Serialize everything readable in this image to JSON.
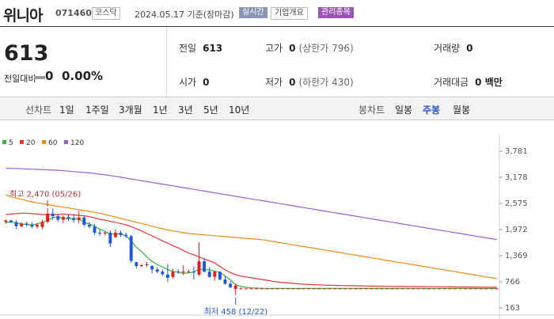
{
  "header": {
    "name": "위니아",
    "code": "071460",
    "market": "코스닥",
    "date": "2024.05.17 기준(장마감)",
    "realtime": "실시간",
    "company_info": "기업개요",
    "managed": "관리종목"
  },
  "summary": {
    "price": "613",
    "change_label": "전일대비",
    "change": "0",
    "rate": "0.00%",
    "prev_label": "전일",
    "prev": "613",
    "high_label": "고가",
    "high": "0",
    "high_limit": "(상한가 796)",
    "vol_label": "거래량",
    "vol": "0",
    "open_label": "시가",
    "open": "0",
    "low_label": "저가",
    "low": "0",
    "low_limit": "(하한가 430)",
    "amt_label": "거래대금",
    "amt": "0 백만"
  },
  "tabs": {
    "line": "선차트",
    "d1": "1일",
    "w1": "1주일",
    "m3": "3개월",
    "y1": "1년",
    "y3": "3년",
    "y5": "5년",
    "y10": "10년",
    "candle": "봉차트",
    "day": "일봉",
    "week": "주봉",
    "month": "월봉",
    "active": "주봉"
  },
  "chart_data": {
    "type": "line",
    "legend": [
      {
        "name": "5",
        "color": "#3bb33b"
      },
      {
        "name": "20",
        "color": "#e83535"
      },
      {
        "name": "60",
        "color": "#ef8a17"
      },
      {
        "name": "120",
        "color": "#9b5fd0"
      }
    ],
    "y_ticks": [
      3781,
      3178,
      2575,
      1972,
      1369,
      766,
      163
    ],
    "ylim": [
      163,
      3781
    ],
    "candles": [
      [
        2150,
        2210,
        2110,
        2180
      ],
      [
        2180,
        2200,
        2120,
        2140
      ],
      [
        2140,
        2190,
        1990,
        2050
      ],
      [
        2050,
        2140,
        2020,
        2110
      ],
      [
        2110,
        2160,
        2050,
        2080
      ],
      [
        2080,
        2150,
        2000,
        2040
      ],
      [
        2040,
        2120,
        2000,
        2080
      ],
      [
        2030,
        2200,
        1980,
        2150
      ],
      [
        2150,
        2470,
        2120,
        2340
      ],
      [
        2340,
        2460,
        2200,
        2280
      ],
      [
        2280,
        2330,
        2150,
        2200
      ],
      [
        2200,
        2300,
        2120,
        2260
      ],
      [
        2260,
        2320,
        2170,
        2230
      ],
      [
        2230,
        2330,
        2130,
        2190
      ],
      [
        2190,
        2400,
        2110,
        2250
      ],
      [
        2250,
        2280,
        2050,
        2080
      ],
      [
        2080,
        2150,
        2000,
        2040
      ],
      [
        2040,
        2100,
        1850,
        1900
      ],
      [
        1900,
        1980,
        1830,
        1880
      ],
      [
        1880,
        1930,
        1840,
        1900
      ],
      [
        1900,
        1950,
        1570,
        1650
      ],
      [
        1800,
        1980,
        1780,
        1900
      ],
      [
        1900,
        1950,
        1800,
        1850
      ],
      [
        1850,
        1900,
        1780,
        1820
      ],
      [
        1820,
        1850,
        1200,
        1250
      ],
      [
        1220,
        1230,
        1080,
        1130
      ],
      [
        1130,
        1180,
        1100,
        1150
      ],
      [
        1150,
        1220,
        1110,
        1170
      ],
      [
        1130,
        1150,
        960,
        1050
      ],
      [
        1050,
        1100,
        960,
        1000
      ],
      [
        1000,
        1050,
        900,
        940
      ],
      [
        930,
        1180,
        760,
        860
      ],
      [
        880,
        1070,
        840,
        1000
      ],
      [
        1000,
        1050,
        950,
        980
      ],
      [
        980,
        1150,
        920,
        1000
      ],
      [
        1000,
        1050,
        980,
        1000
      ],
      [
        1000,
        1120,
        820,
        980
      ],
      [
        930,
        1680,
        900,
        1240
      ],
      [
        1240,
        1320,
        980,
        1000
      ],
      [
        1000,
        1100,
        860,
        880
      ],
      [
        880,
        1020,
        790,
        1000
      ],
      [
        1000,
        1010,
        800,
        820
      ],
      [
        820,
        890,
        700,
        720
      ],
      [
        720,
        780,
        620,
        640
      ],
      [
        600,
        720,
        458,
        680
      ],
      [
        610,
        640,
        600,
        613
      ],
      [
        613,
        620,
        600,
        613
      ],
      [
        613,
        620,
        605,
        613
      ],
      [
        613,
        615,
        608,
        613
      ],
      [
        613,
        615,
        608,
        613
      ],
      [
        613,
        615,
        608,
        613
      ],
      [
        613,
        615,
        608,
        613
      ],
      [
        613,
        615,
        608,
        613
      ],
      [
        613,
        615,
        608,
        613
      ],
      [
        613,
        615,
        608,
        613
      ],
      [
        613,
        615,
        608,
        613
      ],
      [
        613,
        615,
        608,
        613
      ],
      [
        613,
        615,
        608,
        613
      ],
      [
        613,
        615,
        608,
        613
      ],
      [
        613,
        615,
        608,
        613
      ],
      [
        613,
        615,
        608,
        613
      ],
      [
        613,
        615,
        608,
        613
      ],
      [
        613,
        615,
        608,
        613
      ],
      [
        613,
        615,
        608,
        613
      ],
      [
        613,
        615,
        608,
        613
      ],
      [
        613,
        615,
        608,
        613
      ],
      [
        613,
        615,
        608,
        613
      ],
      [
        613,
        615,
        608,
        613
      ],
      [
        613,
        615,
        608,
        613
      ],
      [
        613,
        615,
        608,
        613
      ],
      [
        613,
        615,
        608,
        613
      ],
      [
        613,
        615,
        608,
        613
      ],
      [
        613,
        615,
        608,
        613
      ],
      [
        613,
        615,
        608,
        613
      ],
      [
        613,
        615,
        608,
        613
      ],
      [
        613,
        615,
        608,
        613
      ],
      [
        613,
        615,
        608,
        613
      ],
      [
        613,
        615,
        608,
        613
      ],
      [
        613,
        615,
        608,
        613
      ],
      [
        613,
        615,
        608,
        613
      ],
      [
        613,
        615,
        608,
        613
      ],
      [
        613,
        615,
        608,
        613
      ],
      [
        613,
        615,
        608,
        613
      ],
      [
        613,
        615,
        608,
        613
      ],
      [
        613,
        615,
        608,
        613
      ],
      [
        613,
        615,
        608,
        613
      ],
      [
        613,
        615,
        608,
        613
      ],
      [
        613,
        615,
        608,
        613
      ],
      [
        613,
        615,
        608,
        613
      ],
      [
        613,
        615,
        608,
        613
      ],
      [
        613,
        615,
        608,
        613
      ],
      [
        613,
        615,
        608,
        613
      ],
      [
        613,
        615,
        608,
        613
      ],
      [
        613,
        615,
        608,
        613
      ],
      [
        613,
        615,
        608,
        613
      ]
    ],
    "ma": {
      "5": [
        [
          2130,
          2150,
          2130,
          2100,
          2090,
          2080,
          2100,
          2140,
          2180,
          2250,
          2270,
          2230,
          2220,
          2230,
          2220,
          2140,
          2100,
          2050,
          1980,
          1930,
          1870,
          1870,
          1870,
          1830,
          1710,
          1560,
          1460,
          1340,
          1240,
          1160,
          1110,
          1050,
          1000,
          990,
          960,
          970,
          990,
          1060,
          1050,
          1040,
          1010,
          980,
          900,
          810,
          700,
          660,
          640,
          625,
          620,
          615,
          613,
          613,
          613,
          613,
          613,
          613,
          613,
          613,
          613,
          613,
          613,
          613,
          613,
          613,
          613,
          613,
          613,
          613,
          613,
          613,
          613,
          613,
          613,
          613,
          613,
          613,
          613,
          613,
          613,
          613,
          613,
          613,
          613,
          613,
          613,
          613,
          613,
          613,
          613,
          613,
          613,
          613,
          613,
          613,
          613
        ]
      ],
      "20": [
        [
          2320,
          2330,
          2340,
          2350,
          2350,
          2340,
          2330,
          2320,
          2320,
          2320,
          2320,
          2330,
          2320,
          2310,
          2300,
          2290,
          2270,
          2240,
          2210,
          2190,
          2160,
          2140,
          2110,
          2080,
          2040,
          1990,
          1940,
          1880,
          1830,
          1770,
          1710,
          1660,
          1600,
          1550,
          1490,
          1430,
          1390,
          1340,
          1290,
          1250,
          1200,
          1120,
          1040,
          980,
          930,
          900,
          880,
          860,
          840,
          820,
          800,
          780,
          765,
          750,
          740,
          730,
          720,
          712,
          706,
          700,
          695,
          690,
          686,
          683,
          680,
          678,
          676,
          674,
          672,
          670,
          668,
          666,
          664,
          662,
          660,
          659,
          658,
          657,
          656,
          655,
          654,
          653,
          652,
          651,
          650,
          649,
          648,
          647,
          646,
          645,
          644,
          643,
          642,
          641,
          640
        ]
      ],
      "60": [
        [
          2770,
          2730,
          2700,
          2670,
          2640,
          2610,
          2590,
          2570,
          2550,
          2530,
          2510,
          2490,
          2470,
          2450,
          2430,
          2410,
          2390,
          2370,
          2350,
          2320,
          2290,
          2260,
          2230,
          2200,
          2170,
          2140,
          2110,
          2080,
          2050,
          2020,
          1990,
          1960,
          1940,
          1920,
          1900,
          1880,
          1870,
          1860,
          1850,
          1840,
          1830,
          1820,
          1810,
          1800,
          1790,
          1780,
          1770,
          1760,
          1750,
          1740,
          1720,
          1700,
          1680,
          1660,
          1640,
          1620,
          1600,
          1580,
          1560,
          1540,
          1520,
          1500,
          1480,
          1460,
          1440,
          1420,
          1400,
          1380,
          1360,
          1340,
          1320,
          1300,
          1280,
          1260,
          1240,
          1220,
          1200,
          1180,
          1160,
          1140,
          1120,
          1100,
          1080,
          1060,
          1040,
          1020,
          1000,
          980,
          960,
          940,
          920,
          900,
          880,
          860,
          840
        ]
      ],
      "120": [
        [
          3390,
          3385,
          3380,
          3375,
          3370,
          3365,
          3360,
          3355,
          3350,
          3345,
          3340,
          3330,
          3320,
          3310,
          3300,
          3290,
          3280,
          3265,
          3250,
          3235,
          3220,
          3200,
          3180,
          3160,
          3140,
          3120,
          3100,
          3080,
          3060,
          3040,
          3020,
          3000,
          2980,
          2960,
          2940,
          2920,
          2900,
          2880,
          2860,
          2840,
          2820,
          2800,
          2780,
          2760,
          2740,
          2720,
          2700,
          2680,
          2660,
          2640,
          2620,
          2600,
          2580,
          2560,
          2540,
          2520,
          2500,
          2480,
          2460,
          2440,
          2420,
          2400,
          2380,
          2360,
          2340,
          2320,
          2300,
          2280,
          2260,
          2240,
          2220,
          2200,
          2180,
          2160,
          2140,
          2120,
          2100,
          2080,
          2060,
          2040,
          2020,
          2000,
          1980,
          1960,
          1940,
          1920,
          1900,
          1880,
          1860,
          1840,
          1820,
          1800,
          1780,
          1760,
          1740
        ]
      ]
    },
    "max_label": "최고 2,470 (05/26)",
    "min_label": "최저 458 (12/22)"
  }
}
